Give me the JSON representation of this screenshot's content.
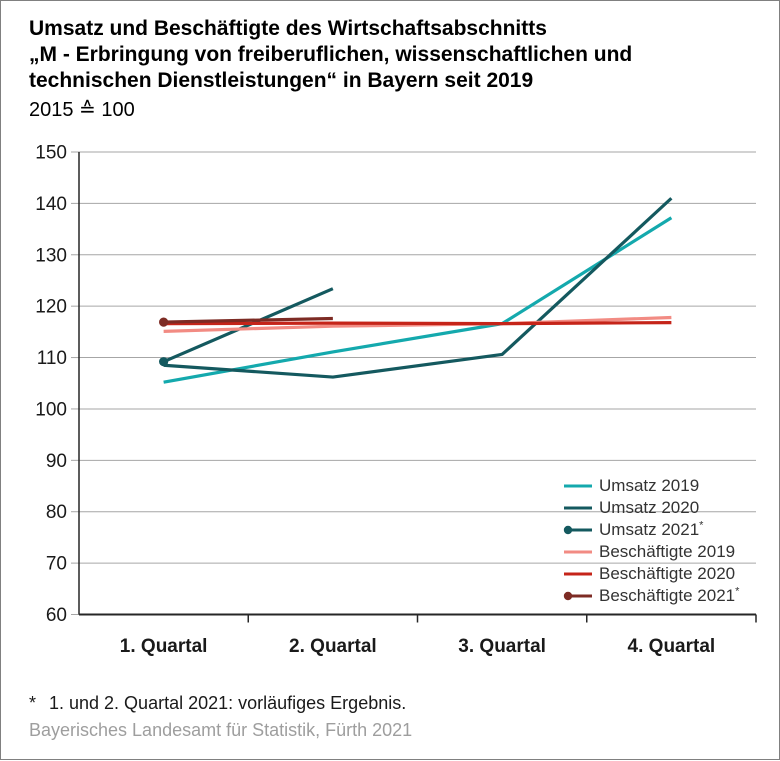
{
  "window": {
    "background": "#ffffff",
    "border_color": "#808080"
  },
  "title": {
    "line1": "Umsatz und Beschäftigte des Wirtschaftsabschnitts",
    "line2": "„M - Erbringung von freiberuflichen, wissenschaftlichen und",
    "line3": "technischen Dienstleistungen“ in Bayern seit 2019",
    "subtitle": "2015 ≙ 100"
  },
  "footnote": {
    "marker": "*",
    "text": "1. und 2. Quartal 2021: vorläufiges Ergebnis."
  },
  "source": "Bayerisches Landesamt für Statistik, Fürth 2021",
  "chart_data": {
    "type": "line",
    "categories": [
      "1. Quartal",
      "2. Quartal",
      "3. Quartal",
      "4. Quartal"
    ],
    "ylim": [
      60,
      150
    ],
    "ytick_step": 10,
    "ytick_labels": [
      "60",
      "70",
      "80",
      "90",
      "100",
      "110",
      "120",
      "130",
      "140",
      "150"
    ],
    "grid": true,
    "legend_position": "inside-bottom-right",
    "grid_color": "#a6a6a6",
    "axis_color": "#262626",
    "tick_label_color": "#1a1a1a",
    "series": [
      {
        "name": "Umsatz 2019",
        "sup": "",
        "color": "#14a9ad",
        "marker_start": false,
        "values": [
          105.2,
          111.1,
          116.6,
          137.2
        ]
      },
      {
        "name": "Umsatz 2020",
        "sup": "",
        "color": "#14595f",
        "marker_start": false,
        "values": [
          108.5,
          106.2,
          110.6,
          141.0
        ]
      },
      {
        "name": "Umsatz 2021",
        "sup": "*",
        "color": "#14595f",
        "marker_start": true,
        "values": [
          109.2,
          123.4,
          null,
          null
        ]
      },
      {
        "name": "Beschäftigte 2019",
        "sup": "",
        "color": "#f28b83",
        "marker_start": false,
        "values": [
          115.1,
          116.1,
          116.6,
          117.8
        ]
      },
      {
        "name": "Beschäftigte 2020",
        "sup": "",
        "color": "#c52419",
        "marker_start": false,
        "values": [
          116.6,
          116.7,
          116.6,
          116.8
        ]
      },
      {
        "name": "Beschäftigte 2021",
        "sup": "*",
        "color": "#7d2b24",
        "marker_start": true,
        "values": [
          116.9,
          117.6,
          null,
          null
        ]
      }
    ]
  }
}
